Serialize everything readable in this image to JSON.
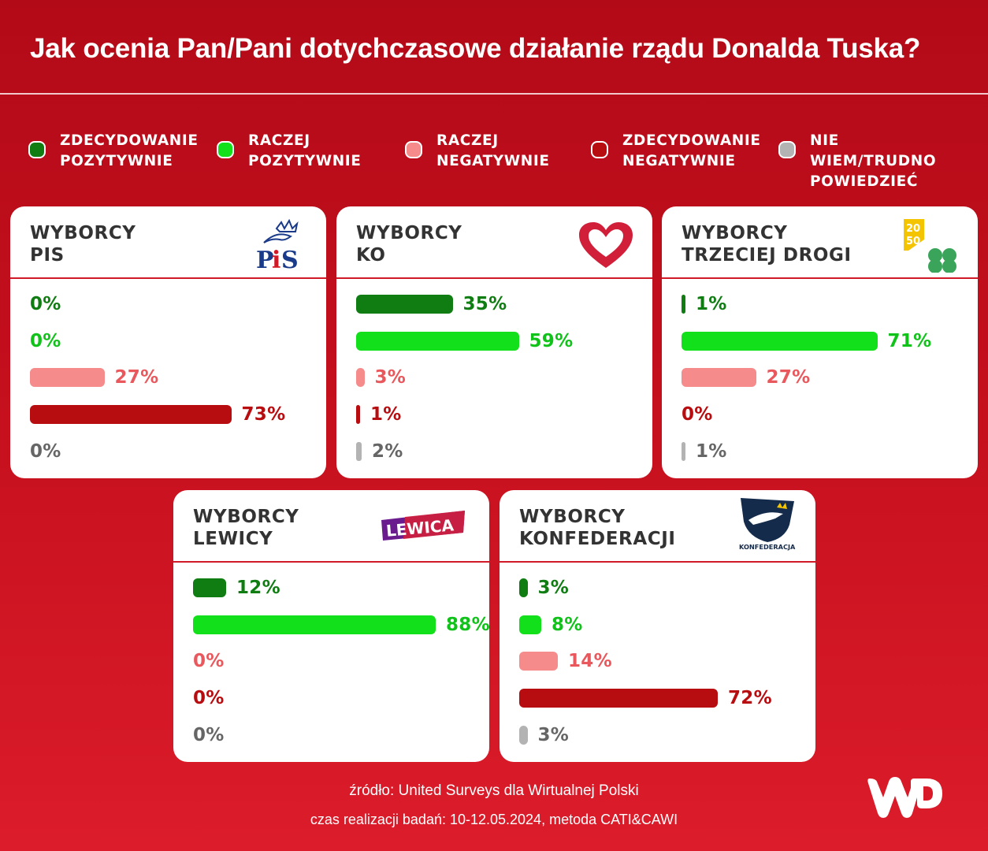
{
  "title": "Jak ocenia Pan/Pani dotychczasowe działanie rządu Donalda Tuska?",
  "colors": {
    "zdecydowanie_pozytywnie": "#0f7d12",
    "raczej_pozytywnie": "#11e01a",
    "raczej_negatywnie": "#f68b8b",
    "zdecydowanie_negatywnie": "#b80d10",
    "nie_wiem": "#b3b3b3",
    "label_zdecydowanie_pozytywnie": "#0f7d12",
    "label_raczej_pozytywnie": "#11c21a",
    "label_raczej_negatywnie": "#e8585c",
    "label_zdecydowanie_negatywnie": "#b80d10",
    "label_nie_wiem": "#666666"
  },
  "legend": [
    {
      "key": "zdecydowanie_pozytywnie",
      "label": "ZDECYDOWANIE\nPOZYTYWNIE"
    },
    {
      "key": "raczej_pozytywnie",
      "label": "RACZEJ\nPOZYTYWNIE"
    },
    {
      "key": "raczej_negatywnie",
      "label": "RACZEJ\nNEGATYWNIE"
    },
    {
      "key": "zdecydowanie_negatywnie",
      "label": "ZDECYDOWANIE\nNEGATYWNIE"
    },
    {
      "key": "nie_wiem",
      "label": "NIE WIEM/TRUDNO\nPOWIEDZIEĆ"
    }
  ],
  "chart_data": [
    {
      "type": "bar",
      "title": "WYBORCY\nPIS",
      "logo": "pis-logo",
      "logo_text": "PiS",
      "categories": [
        "ZDECYDOWANIE POZYTYWNIE",
        "RACZEJ POZYTYWNIE",
        "RACZEJ NEGATYWNIE",
        "ZDECYDOWANIE NEGATYWNIE",
        "NIE WIEM/TRUDNO POWIEDZIEĆ"
      ],
      "values": [
        0,
        0,
        27,
        73,
        0
      ],
      "labels": [
        "0%",
        "0%",
        "27%",
        "73%",
        "0%"
      ]
    },
    {
      "type": "bar",
      "title": "WYBORCY\nKO",
      "logo": "ko-heart-logo",
      "categories": [
        "ZDECYDOWANIE POZYTYWNIE",
        "RACZEJ POZYTYWNIE",
        "RACZEJ NEGATYWNIE",
        "ZDECYDOWANIE NEGATYWNIE",
        "NIE WIEM/TRUDNO POWIEDZIEĆ"
      ],
      "values": [
        35,
        59,
        3,
        1,
        2
      ],
      "labels": [
        "35%",
        "59%",
        "3%",
        "1%",
        "2%"
      ]
    },
    {
      "type": "bar",
      "title": "WYBORCY\nTRZECIEJ DROGI",
      "logo": "trzecia-droga-logo",
      "logo_text": "2050",
      "categories": [
        "ZDECYDOWANIE POZYTYWNIE",
        "RACZEJ POZYTYWNIE",
        "RACZEJ NEGATYWNIE",
        "ZDECYDOWANIE NEGATYWNIE",
        "NIE WIEM/TRUDNO POWIEDZIEĆ"
      ],
      "values": [
        1,
        71,
        27,
        0,
        1
      ],
      "labels": [
        "1%",
        "71%",
        "27%",
        "0%",
        "1%"
      ]
    },
    {
      "type": "bar",
      "title": "WYBORCY\nLEWICY",
      "logo": "lewica-logo",
      "logo_text": "LEWICA",
      "categories": [
        "ZDECYDOWANIE POZYTYWNIE",
        "RACZEJ POZYTYWNIE",
        "RACZEJ NEGATYWNIE",
        "ZDECYDOWANIE NEGATYWNIE",
        "NIE WIEM/TRUDNO POWIEDZIEĆ"
      ],
      "values": [
        12,
        88,
        0,
        0,
        0
      ],
      "labels": [
        "12%",
        "88%",
        "0%",
        "0%",
        "0%"
      ]
    },
    {
      "type": "bar",
      "title": "WYBORCY\nKONFEDERACJI",
      "logo": "konfederacja-logo",
      "logo_text": "KONFEDERACJA",
      "categories": [
        "ZDECYDOWANIE POZYTYWNIE",
        "RACZEJ POZYTYWNIE",
        "RACZEJ NEGATYWNIE",
        "ZDECYDOWANIE NEGATYWNIE",
        "NIE WIEM/TRUDNO POWIEDZIEĆ"
      ],
      "values": [
        3,
        8,
        14,
        72,
        3
      ],
      "labels": [
        "3%",
        "8%",
        "14%",
        "72%",
        "3%"
      ]
    }
  ],
  "footer": {
    "source": "źródło: United Surveys dla Wirtualnej Polski",
    "method": "czas realizacji badań: 10-12.05.2024, metoda CATI&CAWI"
  },
  "brand": {
    "logo": "wp-logo",
    "text": "WP"
  }
}
